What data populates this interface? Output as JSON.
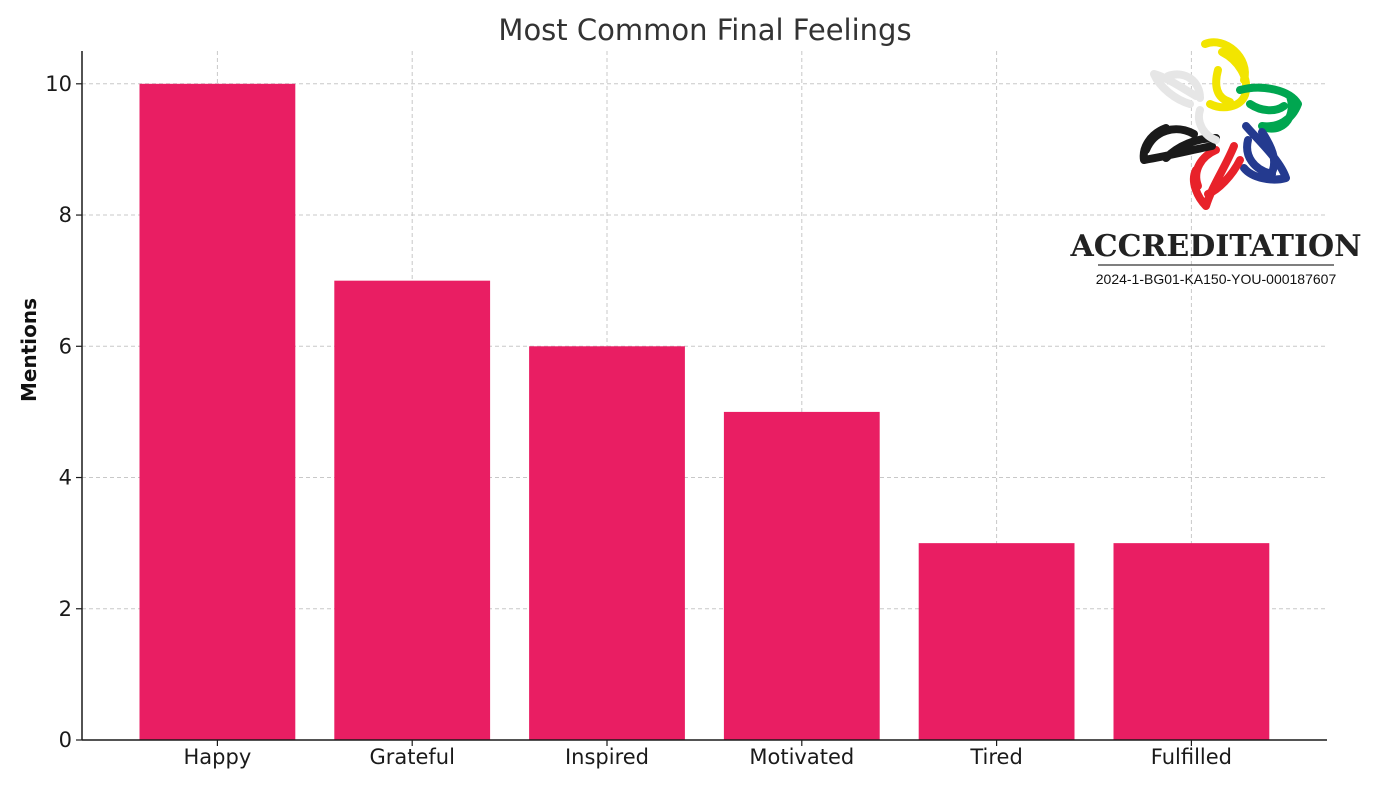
{
  "chart_data": {
    "type": "bar",
    "title": "Most Common Final Feelings",
    "xlabel": "",
    "ylabel": "Mentions",
    "categories": [
      "Happy",
      "Grateful",
      "Inspired",
      "Motivated",
      "Tired",
      "Fulfilled"
    ],
    "values": [
      10,
      7,
      6,
      5,
      3,
      3
    ],
    "ylim": [
      0,
      10.5
    ],
    "yticks": [
      "0",
      "2",
      "4",
      "6",
      "8",
      "10"
    ],
    "grid": true,
    "bar_color": "#e91e63",
    "legend": "none"
  },
  "logo": {
    "icon": "five-color-interlocked-hands-star-icon",
    "title": "ACCREDITATION",
    "code": "2024-1-BG01-KA150-YOU-000187607",
    "colors": [
      "#f2e500",
      "#00a650",
      "#243a8f",
      "#e8222a",
      "#1a1a1a",
      "#e6e6e6"
    ]
  }
}
